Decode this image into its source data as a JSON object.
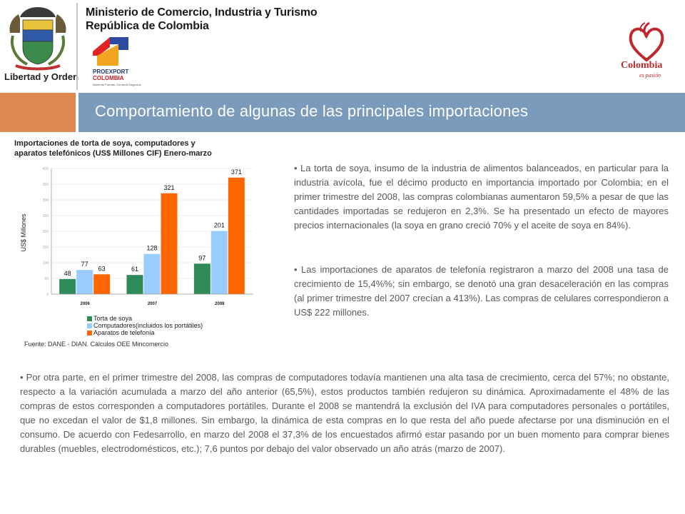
{
  "header": {
    "ministry_line1": "Ministerio de Comercio, Industria y Turismo",
    "ministry_line2": "República de Colombia",
    "coat_of_arms_motto": "Libertad y Orden",
    "proexport_name": "PROEXPORT",
    "proexport_country": "COLOMBIA",
    "proexport_tagline": "Abriendo Puertas, Cerrando Negocios",
    "brand_name": "Colombia",
    "brand_tagline": "es pasión"
  },
  "title_band": {
    "title": "Comportamiento de algunas de las principales importaciones"
  },
  "chart_title": "Importaciones de torta de soya, computadores y aparatos telefónicos (US$ Millones CIF) Enero-marzo",
  "chart_data": {
    "type": "bar",
    "categories": [
      "2006",
      "2007",
      "2008"
    ],
    "series": [
      {
        "name": "Torta de soya",
        "values": [
          48,
          61,
          97
        ],
        "color": "#2e8b57"
      },
      {
        "name": "Computadores(incluidos los portátiles)",
        "values": [
          77,
          128,
          201
        ],
        "color": "#99ccff"
      },
      {
        "name": "Aparatos de telefonía",
        "values": [
          63,
          321,
          371
        ],
        "color": "#ff6600"
      }
    ],
    "ylabel": "US$ Millones",
    "ylim": [
      0,
      400
    ],
    "grid": true,
    "legend": "bottom-left"
  },
  "source": "Fuente: DANE - DIAN. Cálculos OEE Mincomercio",
  "paragraphs": {
    "p1": "• La torta de soya, insumo de la industria de alimentos balanceados, en particular para la industria avícola, fue el décimo producto en importancia importado por Colombia; en el primer trimestre del 2008, las compras colombianas aumentaron 59,5% a pesar de que las cantidades importadas se redujeron en 2,3%. Se ha presentado un efecto de mayores precios internacionales (la soya en grano creció 70% y el aceite de soya en 84%).",
    "p2": "• Las importaciones de aparatos de telefonía registraron a marzo del 2008 una tasa de crecimiento de 15,4%%; sin embargo, se denotó una gran desaceleración en las compras (al primer trimestre del 2007 crecían a 413%). Las compras de celulares correspondieron a US$ 222 millones.",
    "p3": "• Por otra parte, en el primer trimestre del 2008, las compras de computadores todavía mantienen una alta tasa de crecimiento, cerca del 57%; no obstante, respecto a la variación acumulada a marzo del año anterior (65,5%), estos productos también redujeron su dinámica. Aproximadamente el 48% de las compras de estos corresponden a computadores portátiles. Durante el 2008 se mantendrá la exclusión del IVA para computadores personales o portátiles, que no excedan el valor de $1,8 millones. Sin embargo, la dinámica de esta compras en lo que resta del año puede afectarse por una disminución en el consumo. De acuerdo con Fedesarrollo, en marzo del 2008 el 37,3% de los encuestados afirmó estar pasando por un buen momento para comprar bienes durables (muebles, electrodomésticos, etc.); 7,6 puntos por debajo del valor observado un año atrás (marzo de 2007)."
  }
}
